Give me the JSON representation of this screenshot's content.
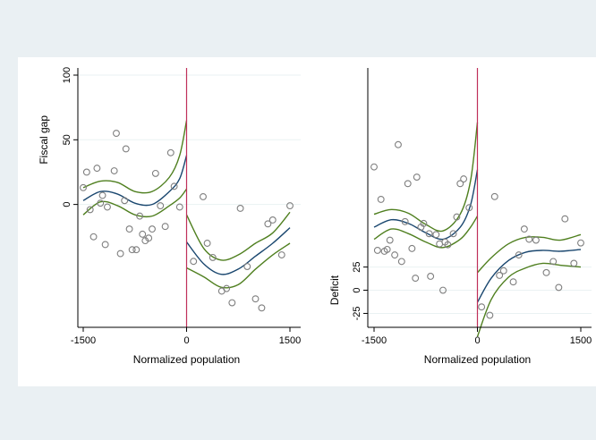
{
  "colors": {
    "outer_background": "#eaf0f3",
    "plot_background": "#ffffff",
    "points": "#7f7f7f",
    "fit_line": "#1a476f",
    "ci_line": "#4f7f1f",
    "cutoff_line": "#c0305a",
    "grid": "#eaf2f3"
  },
  "chart_data": [
    {
      "type": "scatter",
      "title": "",
      "xlabel": "Normalized population",
      "ylabel": "Fiscal gap",
      "xlim": [
        -1600,
        1550
      ],
      "ylim": [
        -95,
        100
      ],
      "xticks": [
        -1500,
        0,
        1500
      ],
      "xtick_labels": [
        "-1500",
        "0",
        "1500"
      ],
      "yticks": [
        0,
        50,
        100
      ],
      "ytick_labels": [
        "0",
        "50",
        "100"
      ],
      "grid": true,
      "cutoff": 0,
      "points": [
        [
          -1500,
          13
        ],
        [
          -1450,
          25
        ],
        [
          -1400,
          -4
        ],
        [
          -1350,
          -25
        ],
        [
          -1300,
          28
        ],
        [
          -1250,
          1
        ],
        [
          -1220,
          7
        ],
        [
          -1180,
          -31
        ],
        [
          -1150,
          -2
        ],
        [
          -1050,
          26
        ],
        [
          -1020,
          55
        ],
        [
          -960,
          -38
        ],
        [
          -900,
          3
        ],
        [
          -880,
          43
        ],
        [
          -830,
          -19
        ],
        [
          -790,
          -35
        ],
        [
          -730,
          -35
        ],
        [
          -680,
          -9
        ],
        [
          -640,
          -23
        ],
        [
          -600,
          -28
        ],
        [
          -550,
          -26
        ],
        [
          -500,
          -19
        ],
        [
          -450,
          24
        ],
        [
          -380,
          -1
        ],
        [
          -310,
          -17
        ],
        [
          -230,
          40
        ],
        [
          -180,
          14
        ],
        [
          -100,
          -2
        ],
        [
          100,
          -44
        ],
        [
          240,
          6
        ],
        [
          300,
          -30
        ],
        [
          380,
          -41
        ],
        [
          510,
          -67
        ],
        [
          580,
          -65
        ],
        [
          660,
          -76
        ],
        [
          780,
          -3
        ],
        [
          880,
          -48
        ],
        [
          1000,
          -73
        ],
        [
          1090,
          -80
        ],
        [
          1180,
          -15
        ],
        [
          1250,
          -12
        ],
        [
          1380,
          -39
        ],
        [
          1500,
          -1
        ]
      ],
      "fit_left": [
        [
          -1500,
          3
        ],
        [
          -1250,
          10
        ],
        [
          -1000,
          8
        ],
        [
          -750,
          1
        ],
        [
          -500,
          0
        ],
        [
          -250,
          10
        ],
        [
          -100,
          20
        ],
        [
          0,
          38
        ]
      ],
      "ci_upper_left": [
        [
          -1500,
          13
        ],
        [
          -1250,
          18
        ],
        [
          -1000,
          17
        ],
        [
          -750,
          10
        ],
        [
          -500,
          10
        ],
        [
          -250,
          21
        ],
        [
          -100,
          38
        ],
        [
          0,
          65
        ]
      ],
      "ci_lower_left": [
        [
          -1500,
          -8
        ],
        [
          -1250,
          2
        ],
        [
          -1000,
          -1
        ],
        [
          -750,
          -8
        ],
        [
          -500,
          -9
        ],
        [
          -250,
          -1
        ],
        [
          -100,
          5
        ],
        [
          0,
          12
        ]
      ],
      "fit_right": [
        [
          0,
          -29
        ],
        [
          250,
          -46
        ],
        [
          500,
          -54
        ],
        [
          750,
          -50
        ],
        [
          1000,
          -40
        ],
        [
          1250,
          -30
        ],
        [
          1500,
          -18
        ]
      ],
      "ci_upper_right": [
        [
          0,
          -8
        ],
        [
          250,
          -34
        ],
        [
          500,
          -43
        ],
        [
          750,
          -39
        ],
        [
          1000,
          -30
        ],
        [
          1250,
          -22
        ],
        [
          1500,
          -6
        ]
      ],
      "ci_lower_right": [
        [
          0,
          -49
        ],
        [
          250,
          -56
        ],
        [
          500,
          -64
        ],
        [
          750,
          -62
        ],
        [
          1000,
          -50
        ],
        [
          1250,
          -39
        ],
        [
          1500,
          -30
        ]
      ]
    },
    {
      "type": "scatter",
      "title": "",
      "xlabel": "Normalized population",
      "ylabel": "Deficit",
      "xlim": [
        -1600,
        1550
      ],
      "ylim": [
        -40,
        232
      ],
      "xticks": [
        -1500,
        0,
        1500
      ],
      "xtick_labels": [
        "-1500",
        "0",
        "1500"
      ],
      "yticks": [
        -25,
        0,
        25
      ],
      "ytick_labels": [
        "-25",
        "0",
        "25"
      ],
      "grid": true,
      "cutoff": 0,
      "points": [
        [
          -1500,
          133
        ],
        [
          -1450,
          43
        ],
        [
          -1400,
          98
        ],
        [
          -1350,
          42
        ],
        [
          -1310,
          44
        ],
        [
          -1270,
          54
        ],
        [
          -1200,
          38
        ],
        [
          -1150,
          157
        ],
        [
          -1100,
          31
        ],
        [
          -1050,
          74
        ],
        [
          -1010,
          115
        ],
        [
          -950,
          45
        ],
        [
          -900,
          13
        ],
        [
          -880,
          122
        ],
        [
          -820,
          68
        ],
        [
          -780,
          72
        ],
        [
          -700,
          61
        ],
        [
          -680,
          15
        ],
        [
          -600,
          60
        ],
        [
          -550,
          50
        ],
        [
          -500,
          0
        ],
        [
          -470,
          52
        ],
        [
          -430,
          49
        ],
        [
          -350,
          61
        ],
        [
          -300,
          79
        ],
        [
          -250,
          115
        ],
        [
          -200,
          120
        ],
        [
          -120,
          89
        ],
        [
          60,
          -18
        ],
        [
          180,
          -27
        ],
        [
          250,
          101
        ],
        [
          320,
          16
        ],
        [
          380,
          21
        ],
        [
          520,
          9
        ],
        [
          600,
          38
        ],
        [
          680,
          66
        ],
        [
          750,
          55
        ],
        [
          850,
          54
        ],
        [
          1000,
          19
        ],
        [
          1100,
          31
        ],
        [
          1180,
          3
        ],
        [
          1270,
          77
        ],
        [
          1400,
          29
        ],
        [
          1500,
          51
        ]
      ],
      "fit_left": [
        [
          -1500,
          68
        ],
        [
          -1250,
          76
        ],
        [
          -1000,
          72
        ],
        [
          -750,
          62
        ],
        [
          -500,
          55
        ],
        [
          -250,
          68
        ],
        [
          -100,
          92
        ],
        [
          0,
          130
        ]
      ],
      "ci_upper_left": [
        [
          -1500,
          82
        ],
        [
          -1250,
          87
        ],
        [
          -1000,
          83
        ],
        [
          -750,
          71
        ],
        [
          -500,
          64
        ],
        [
          -250,
          82
        ],
        [
          -100,
          118
        ],
        [
          0,
          181
        ]
      ],
      "ci_lower_left": [
        [
          -1500,
          55
        ],
        [
          -1250,
          66
        ],
        [
          -1000,
          61
        ],
        [
          -750,
          52
        ],
        [
          -500,
          46
        ],
        [
          -250,
          55
        ],
        [
          -100,
          68
        ],
        [
          0,
          80
        ]
      ],
      "fit_right": [
        [
          0,
          -13
        ],
        [
          200,
          13
        ],
        [
          450,
          32
        ],
        [
          700,
          41
        ],
        [
          950,
          43
        ],
        [
          1200,
          42
        ],
        [
          1500,
          44
        ]
      ],
      "ci_upper_right": [
        [
          0,
          19
        ],
        [
          200,
          35
        ],
        [
          450,
          50
        ],
        [
          700,
          57
        ],
        [
          950,
          57
        ],
        [
          1200,
          54
        ],
        [
          1500,
          60
        ]
      ],
      "ci_lower_right": [
        [
          0,
          -50
        ],
        [
          200,
          -10
        ],
        [
          450,
          14
        ],
        [
          700,
          24
        ],
        [
          950,
          29
        ],
        [
          1200,
          27
        ],
        [
          1500,
          25
        ]
      ]
    }
  ]
}
